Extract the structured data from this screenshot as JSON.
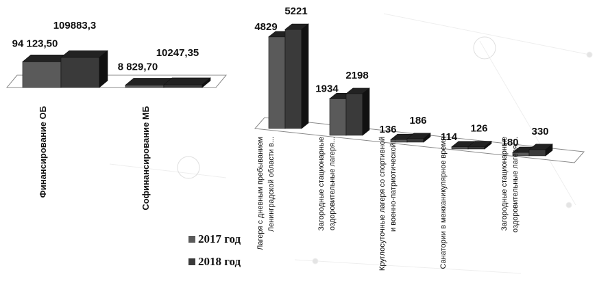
{
  "chart_data": [
    {
      "type": "bar3d",
      "categories": [
        "Финансирование ОБ",
        "Софинансирование МБ"
      ],
      "series": [
        {
          "color": "#5a5a5a",
          "values": [
            94123.5,
            8829.7
          ],
          "value_labels": [
            "94 123,50",
            "8 829,70"
          ]
        },
        {
          "color": "#3a3a3a",
          "values": [
            109883.3,
            10247.35
          ],
          "value_labels": [
            "109883,3",
            "10247,35"
          ]
        }
      ]
    },
    {
      "type": "bar3d",
      "categories": [
        "Лагеря с дневным пребыванием Ленинградской области в...",
        "Загородные стационарные оздоровительные лагеря...",
        "Круглосуточные лагеря со спортивной и военно-патриотической...",
        "Санатории в межканикулярное время",
        "Загородные стационарные оздоровительные лагеря,..."
      ],
      "series": [
        {
          "name": "2017 год",
          "color": "#5a5a5a",
          "values": [
            4829,
            1934,
            136,
            114,
            180
          ]
        },
        {
          "name": "2018 год",
          "color": "#3a3a3a",
          "values": [
            5221,
            2198,
            186,
            126,
            330
          ]
        }
      ]
    }
  ]
}
